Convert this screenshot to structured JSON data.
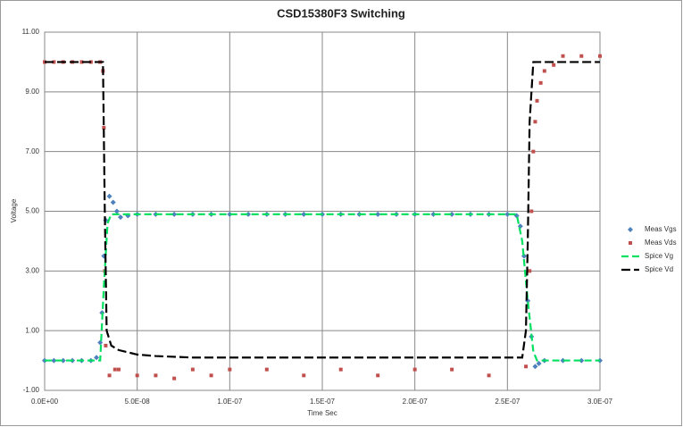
{
  "chart_data": {
    "type": "scatter-line",
    "title": "CSD15380F3 Switching",
    "x_label": "Time Sec",
    "y_label": "Voltage",
    "xlim": [
      0,
      3e-07
    ],
    "xticks": [
      {
        "value": 0,
        "label": "0.0E+00"
      },
      {
        "value": 5e-08,
        "label": "5.0E-08"
      },
      {
        "value": 1e-07,
        "label": "1.0E-07"
      },
      {
        "value": 1.5e-07,
        "label": "1.5E-07"
      },
      {
        "value": 2e-07,
        "label": "2.0E-07"
      },
      {
        "value": 2.5e-07,
        "label": "2.5E-07"
      },
      {
        "value": 3e-07,
        "label": "3.0E-07"
      }
    ],
    "ylim": [
      -1,
      11
    ],
    "yticks": [
      {
        "value": -1,
        "label": "-1.00"
      },
      {
        "value": 1,
        "label": "1.00"
      },
      {
        "value": 3,
        "label": "3.00"
      },
      {
        "value": 5,
        "label": "5.00"
      },
      {
        "value": 7,
        "label": "7.00"
      },
      {
        "value": 9,
        "label": "9.00"
      },
      {
        "value": 11,
        "label": "11.00"
      }
    ],
    "grid": true,
    "legend": "right",
    "series": [
      {
        "name": "Meas Vgs",
        "color": "#4f81bd",
        "marker": "diamond",
        "x": [
          0,
          5e-09,
          1e-08,
          1.5e-08,
          2e-08,
          2.5e-08,
          2.8e-08,
          3e-08,
          3.1e-08,
          3.2e-08,
          3.3e-08,
          3.5e-08,
          3.7e-08,
          3.9e-08,
          4.1e-08,
          4.5e-08,
          5e-08,
          6e-08,
          7e-08,
          8e-08,
          9e-08,
          1e-07,
          1.1e-07,
          1.2e-07,
          1.3e-07,
          1.4e-07,
          1.5e-07,
          1.6e-07,
          1.7e-07,
          1.8e-07,
          1.9e-07,
          2e-07,
          2.1e-07,
          2.2e-07,
          2.3e-07,
          2.4e-07,
          2.5e-07,
          2.55e-07,
          2.57e-07,
          2.59e-07,
          2.61e-07,
          2.63e-07,
          2.65e-07,
          2.67e-07,
          2.7e-07,
          2.8e-07,
          2.9e-07,
          3e-07
        ],
        "values": [
          0,
          0,
          0,
          0,
          0,
          0,
          0.1,
          0.6,
          1.6,
          3.5,
          4.7,
          5.5,
          5.3,
          5.0,
          4.8,
          4.85,
          4.9,
          4.9,
          4.9,
          4.9,
          4.9,
          4.9,
          4.9,
          4.9,
          4.9,
          4.9,
          4.9,
          4.9,
          4.9,
          4.9,
          4.9,
          4.9,
          4.9,
          4.9,
          4.9,
          4.9,
          4.9,
          4.85,
          4.5,
          3.5,
          2.0,
          0.8,
          -0.2,
          -0.1,
          0,
          0,
          0,
          0
        ]
      },
      {
        "name": "Meas Vds",
        "color": "#c0504d",
        "marker": "square",
        "x": [
          0,
          5e-09,
          1e-08,
          1.5e-08,
          2e-08,
          2.5e-08,
          3e-08,
          3.15e-08,
          3.2e-08,
          3.25e-08,
          3.3e-08,
          3.5e-08,
          3.8e-08,
          4e-08,
          5e-08,
          6e-08,
          7e-08,
          8e-08,
          9e-08,
          1e-07,
          1.2e-07,
          1.4e-07,
          1.6e-07,
          1.8e-07,
          2e-07,
          2.2e-07,
          2.4e-07,
          2.6e-07,
          2.62e-07,
          2.63e-07,
          2.64e-07,
          2.65e-07,
          2.66e-07,
          2.68e-07,
          2.7e-07,
          2.75e-07,
          2.8e-07,
          2.9e-07,
          3e-07
        ],
        "values": [
          10,
          10,
          10,
          10,
          10,
          10,
          10,
          9.7,
          7.8,
          3,
          0.5,
          -0.5,
          -0.3,
          -0.3,
          -0.5,
          -0.5,
          -0.6,
          -0.3,
          -0.5,
          -0.3,
          -0.3,
          -0.5,
          -0.3,
          -0.5,
          -0.3,
          -0.3,
          -0.5,
          -0.2,
          3,
          5,
          7,
          8,
          8.7,
          9.3,
          9.7,
          9.9,
          10.2,
          10.2,
          10.2
        ]
      },
      {
        "name": "Spice Vg",
        "color": "#00e060",
        "dash": "8,4",
        "x": [
          0,
          3e-08,
          3.2e-08,
          3.4e-08,
          3.6e-08,
          2.55e-07,
          2.58e-07,
          2.61e-07,
          2.64e-07,
          2.66e-07,
          3e-07
        ],
        "values": [
          0,
          0,
          2.5,
          4.6,
          4.9,
          4.9,
          4,
          2,
          0.3,
          0,
          0
        ]
      },
      {
        "name": "Spice Vd",
        "color": "#000000",
        "dash": "10,4",
        "x": [
          0,
          3.15e-08,
          3.25e-08,
          3.35e-08,
          3.6e-08,
          4e-08,
          5e-08,
          6e-08,
          8e-08,
          2.58e-07,
          2.6e-07,
          2.61e-07,
          2.62e-07,
          2.64e-07,
          3e-07
        ],
        "values": [
          10,
          10,
          5,
          1,
          0.5,
          0.35,
          0.2,
          0.15,
          0.1,
          0.1,
          1,
          4,
          8,
          10,
          10
        ]
      }
    ]
  }
}
